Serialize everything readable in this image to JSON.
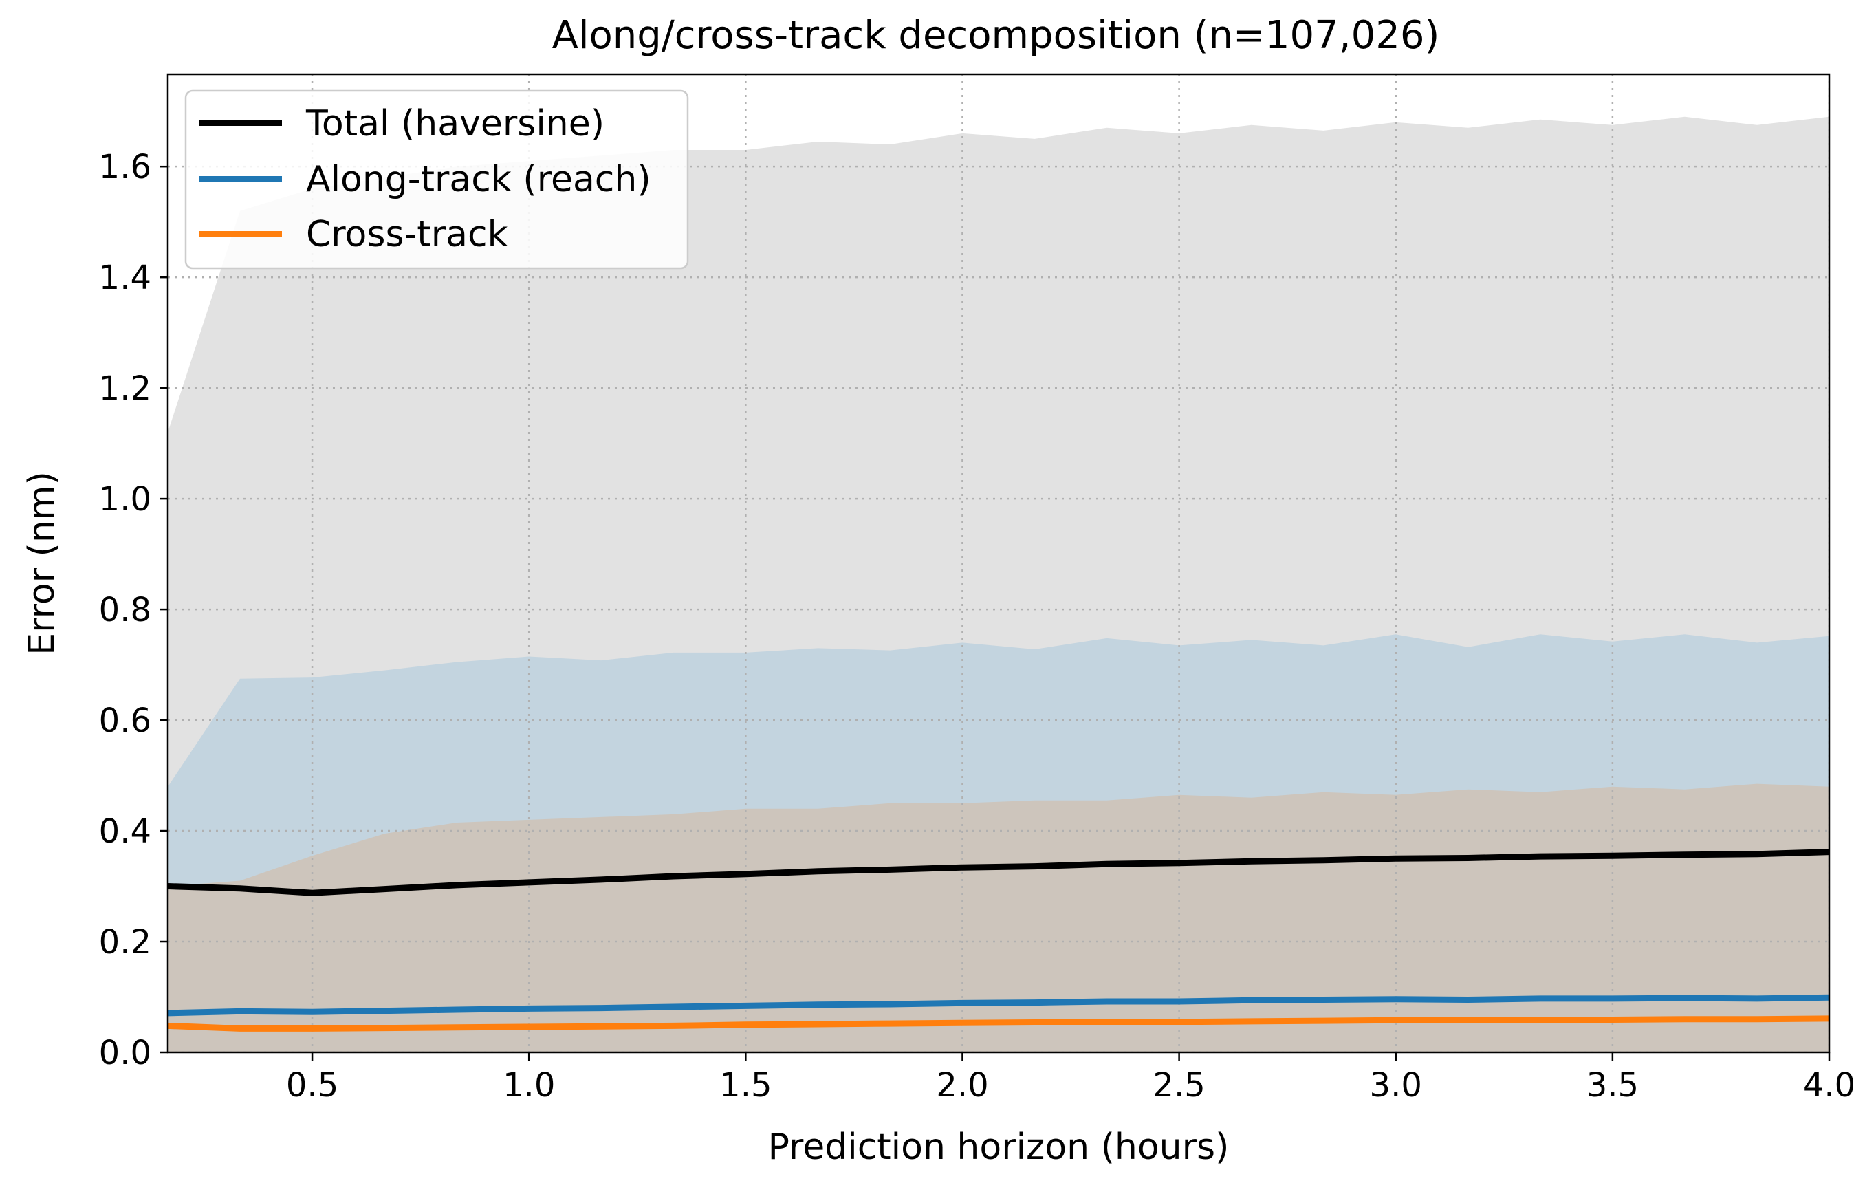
{
  "chart_data": {
    "type": "line",
    "title": "Along/cross-track decomposition (n=107,026)",
    "xlabel": "Prediction horizon (hours)",
    "ylabel": "Error (nm)",
    "xlim": [
      0.1667,
      4.0
    ],
    "ylim": [
      0.0,
      1.7667
    ],
    "grid": true,
    "legend_position": "top-left",
    "x_ticks": [
      0.5,
      1.0,
      1.5,
      2.0,
      2.5,
      3.0,
      3.5,
      4.0
    ],
    "x_tick_labels": [
      "0.5",
      "1.0",
      "1.5",
      "2.0",
      "2.5",
      "3.0",
      "3.5",
      "4.0"
    ],
    "y_ticks": [
      0.0,
      0.2,
      0.4,
      0.6,
      0.8,
      1.0,
      1.2,
      1.4,
      1.6
    ],
    "y_tick_labels": [
      "0.0",
      "0.2",
      "0.4",
      "0.6",
      "0.8",
      "1.0",
      "1.2",
      "1.4",
      "1.6"
    ],
    "x": [
      0.1667,
      0.3333,
      0.5,
      0.6667,
      0.8333,
      1.0,
      1.1667,
      1.3333,
      1.5,
      1.6667,
      1.8333,
      2.0,
      2.1667,
      2.3333,
      2.5,
      2.6667,
      2.8333,
      3.0,
      3.1667,
      3.3333,
      3.5,
      3.6667,
      3.8333,
      4.0
    ],
    "series": [
      {
        "name": "Total (haversine)",
        "color": "#000000",
        "values": [
          0.3,
          0.296,
          0.288,
          0.295,
          0.302,
          0.307,
          0.312,
          0.318,
          0.322,
          0.327,
          0.33,
          0.334,
          0.336,
          0.34,
          0.342,
          0.345,
          0.347,
          0.35,
          0.351,
          0.354,
          0.355,
          0.357,
          0.358,
          0.362
        ],
        "band_lower": [
          0.0,
          0.0,
          0.0,
          0.0,
          0.0,
          0.0,
          0.0,
          0.0,
          0.0,
          0.0,
          0.0,
          0.0,
          0.0,
          0.0,
          0.0,
          0.0,
          0.0,
          0.0,
          0.0,
          0.0,
          0.0,
          0.0,
          0.0,
          0.0
        ],
        "band_upper": [
          1.12,
          1.52,
          1.56,
          1.58,
          1.6,
          1.61,
          1.62,
          1.63,
          1.63,
          1.645,
          1.64,
          1.66,
          1.65,
          1.67,
          1.66,
          1.675,
          1.665,
          1.68,
          1.67,
          1.685,
          1.675,
          1.69,
          1.675,
          1.69
        ]
      },
      {
        "name": "Along-track (reach)",
        "color": "#1f77b4",
        "band_color": "#aac8dd",
        "values": [
          0.071,
          0.074,
          0.073,
          0.075,
          0.077,
          0.079,
          0.08,
          0.082,
          0.084,
          0.086,
          0.087,
          0.089,
          0.09,
          0.092,
          0.092,
          0.094,
          0.095,
          0.096,
          0.095,
          0.097,
          0.097,
          0.098,
          0.097,
          0.099
        ],
        "band_lower": [
          0.3,
          0.31,
          0.355,
          0.395,
          0.415,
          0.42,
          0.425,
          0.43,
          0.44,
          0.44,
          0.45,
          0.45,
          0.455,
          0.455,
          0.465,
          0.46,
          0.47,
          0.465,
          0.475,
          0.47,
          0.48,
          0.475,
          0.485,
          0.48
        ],
        "band_upper": [
          0.48,
          0.675,
          0.677,
          0.69,
          0.705,
          0.715,
          0.708,
          0.722,
          0.722,
          0.73,
          0.726,
          0.74,
          0.728,
          0.748,
          0.735,
          0.745,
          0.735,
          0.755,
          0.732,
          0.755,
          0.742,
          0.755,
          0.74,
          0.752
        ]
      },
      {
        "name": "Cross-track",
        "color": "#ff7f0e",
        "values": [
          0.048,
          0.043,
          0.043,
          0.044,
          0.045,
          0.046,
          0.047,
          0.048,
          0.05,
          0.051,
          0.052,
          0.053,
          0.054,
          0.055,
          0.055,
          0.056,
          0.057,
          0.058,
          0.058,
          0.059,
          0.059,
          0.06,
          0.06,
          0.061
        ]
      }
    ],
    "band_color_total": "#e2e2e2",
    "band_color_overlap": "#cdc5bc"
  }
}
